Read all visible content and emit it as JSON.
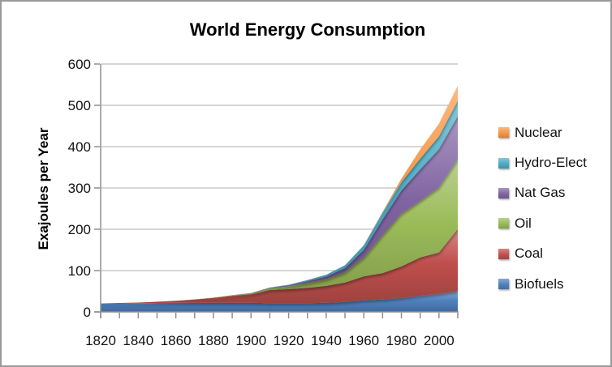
{
  "title": "World Energy Consumption",
  "chart_data": {
    "type": "area",
    "stacked": true,
    "title": "World Energy Consumption",
    "xlabel": "",
    "ylabel": "Exajoules per Year",
    "ylim": [
      0,
      600
    ],
    "y_ticks": [
      0,
      100,
      200,
      300,
      400,
      500,
      600
    ],
    "x_tick_labels": [
      1820,
      1840,
      1860,
      1880,
      1900,
      1920,
      1940,
      1960,
      1980,
      2000
    ],
    "grid": "horizontal",
    "legend_position": "right",
    "years": [
      1820,
      1830,
      1840,
      1850,
      1860,
      1870,
      1880,
      1890,
      1900,
      1910,
      1920,
      1930,
      1940,
      1950,
      1960,
      1970,
      1980,
      1990,
      2000,
      2010
    ],
    "series": [
      {
        "name": "Biofuels",
        "color": "#4f81bd",
        "values": [
          20,
          20.5,
          21,
          21.5,
          22,
          22,
          22,
          22,
          22,
          21,
          21,
          21,
          22,
          24,
          28,
          30,
          34,
          39,
          44,
          50
        ]
      },
      {
        "name": "Coal",
        "color": "#c0504d",
        "values": [
          0.5,
          1,
          1.5,
          3,
          5,
          8,
          12,
          17,
          21,
          32,
          34,
          37,
          41,
          47,
          58,
          64,
          76,
          93,
          100,
          151
        ]
      },
      {
        "name": "Oil",
        "color": "#9bbb59",
        "values": [
          0,
          0,
          0,
          0,
          0.1,
          0.3,
          0.6,
          1,
          2,
          4,
          7,
          12,
          16,
          25,
          46,
          92,
          128,
          137,
          158,
          169
        ]
      },
      {
        "name": "Nat Gas",
        "color": "#8064a2",
        "values": [
          0,
          0,
          0,
          0,
          0,
          0,
          0,
          0.3,
          0.6,
          1.5,
          2.5,
          4.5,
          7,
          10,
          18,
          38,
          56,
          76,
          92,
          104
        ]
      },
      {
        "name": "Hydro-Elect",
        "color": "#4bacc6",
        "values": [
          0,
          0,
          0,
          0,
          0,
          0,
          0,
          0,
          0.2,
          0.6,
          1.2,
          2.5,
          4,
          7,
          11,
          16,
          20,
          26,
          31,
          37
        ]
      },
      {
        "name": "Nuclear",
        "color": "#f79646",
        "values": [
          0,
          0,
          0,
          0,
          0,
          0,
          0,
          0,
          0,
          0,
          0,
          0,
          0,
          0,
          0.2,
          2,
          8,
          22,
          30,
          36
        ]
      }
    ],
    "legend": [
      {
        "label": "Nuclear",
        "color": "#f79646"
      },
      {
        "label": "Hydro-Elect",
        "color": "#4bacc6"
      },
      {
        "label": "Nat Gas",
        "color": "#8064a2"
      },
      {
        "label": "Oil",
        "color": "#9bbb59"
      },
      {
        "label": "Coal",
        "color": "#c0504d"
      },
      {
        "label": "Biofuels",
        "color": "#4f81bd"
      }
    ],
    "colors": {
      "axis": "#8f8f8f",
      "gridline": "#bdbdbd",
      "text": "#111111",
      "background": "#ffffff"
    }
  }
}
